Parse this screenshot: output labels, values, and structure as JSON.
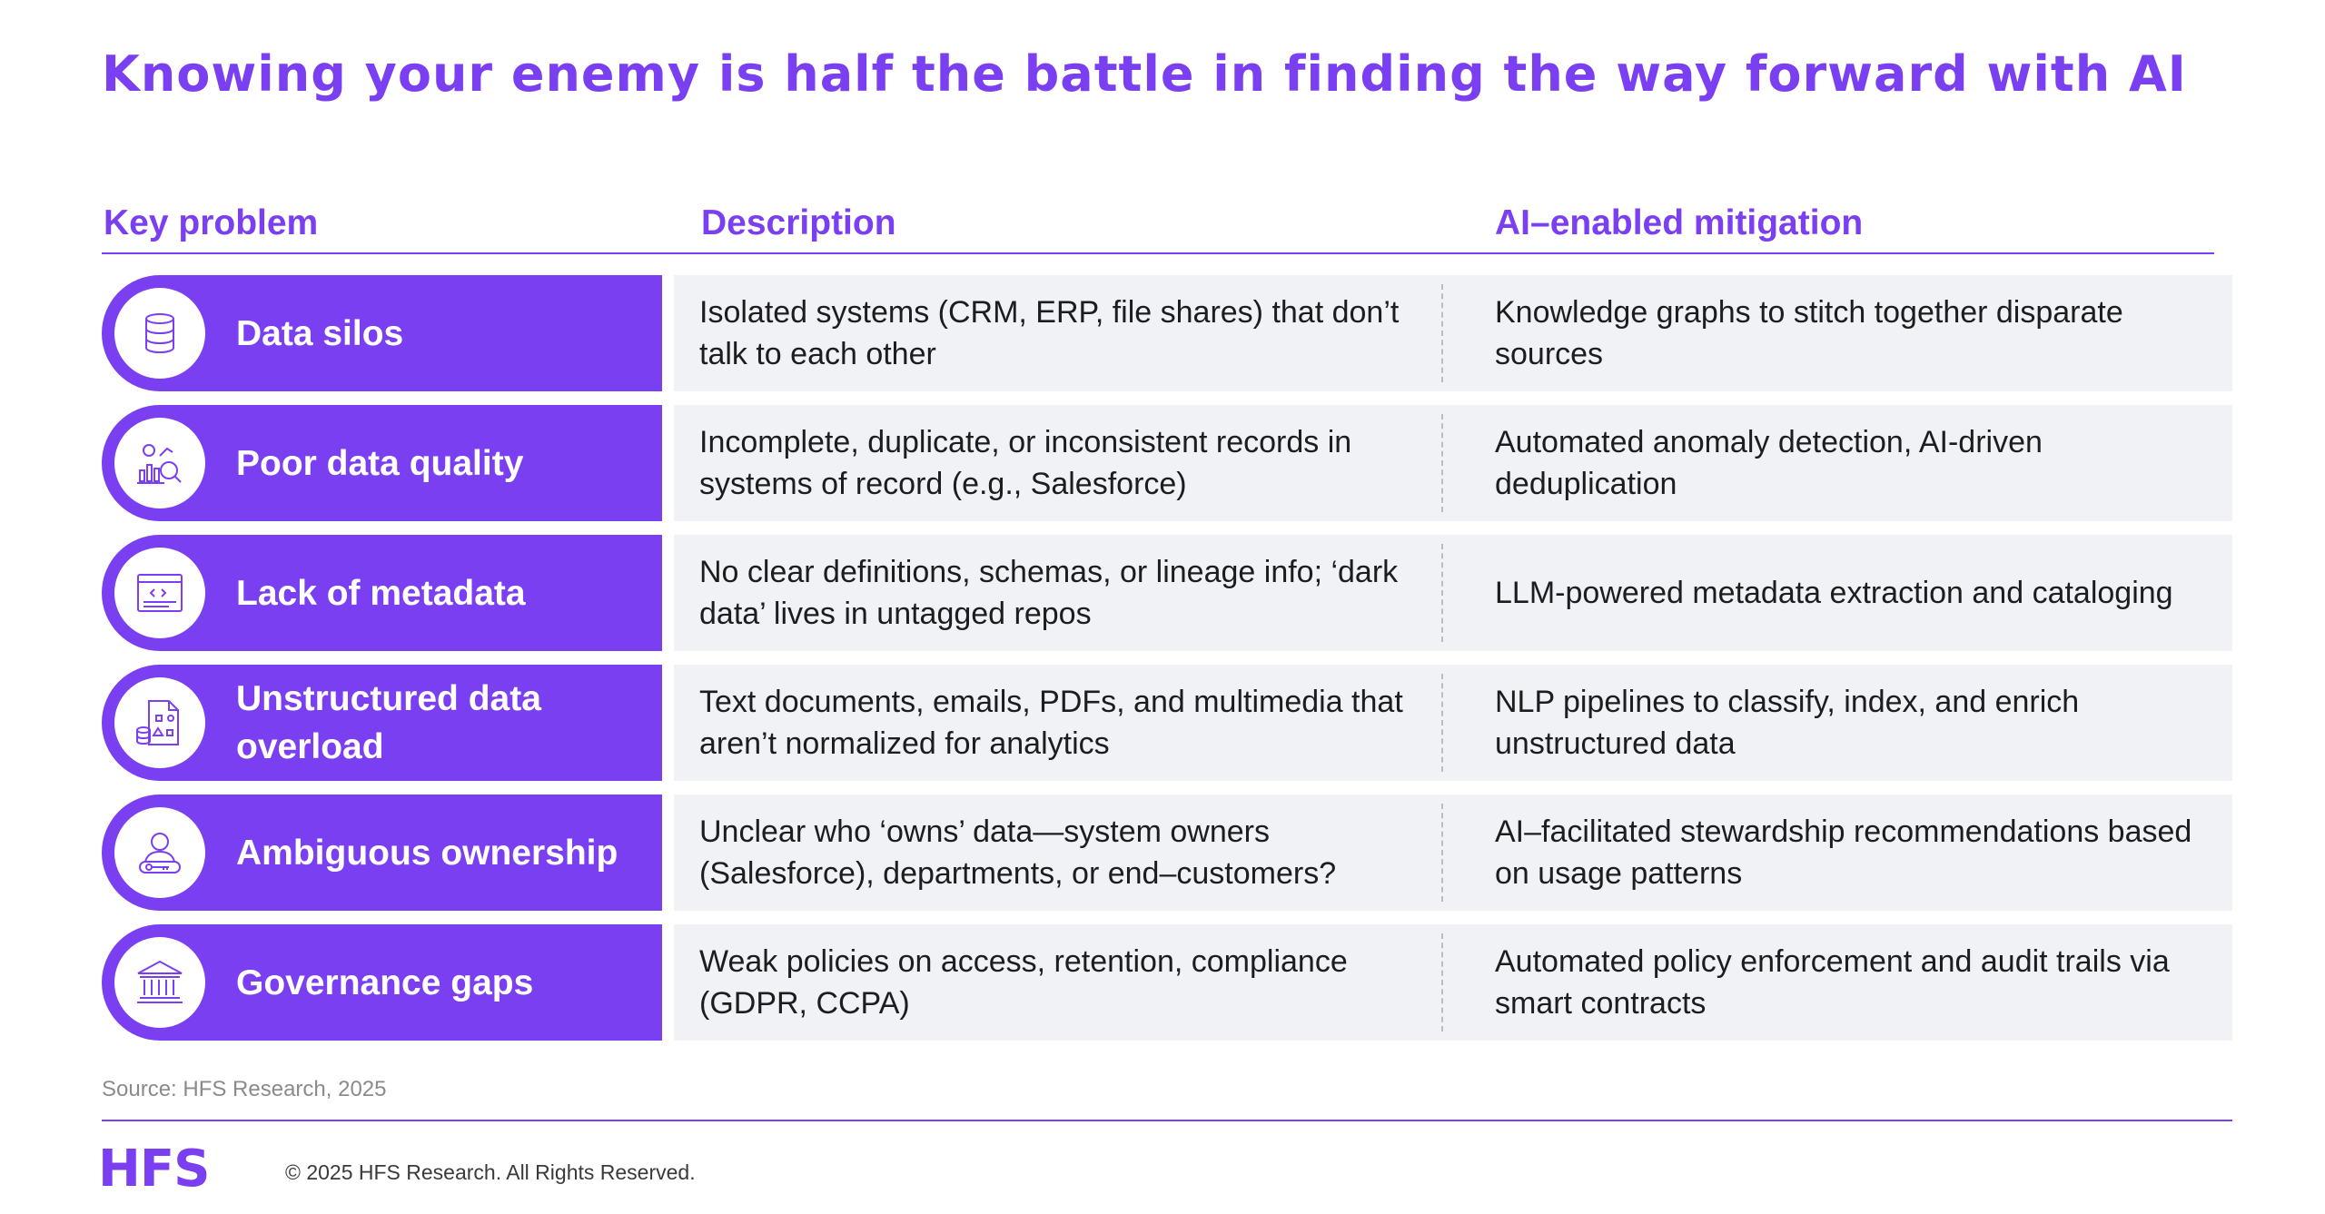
{
  "title": "Knowing your enemy is half the battle in finding the way forward with AI",
  "columns": {
    "problem": "Key problem",
    "description": "Description",
    "mitigation": "AI–enabled mitigation"
  },
  "rows": [
    {
      "problem": "Data silos",
      "icon": "database-icon",
      "description": "Isolated systems (CRM, ERP, file shares) that don’t talk to each other",
      "mitigation": "Knowledge graphs to stitch together disparate sources"
    },
    {
      "problem": "Poor data quality",
      "icon": "data-inspection-icon",
      "description": "Incomplete, duplicate, or inconsistent records in systems of record (e.g., Salesforce)",
      "mitigation": "Automated anomaly detection, AI-driven deduplication"
    },
    {
      "problem": "Lack of metadata",
      "icon": "code-window-icon",
      "description": "No clear definitions, schemas, or lineage info; ‘dark data’ lives in untagged repos",
      "mitigation": "LLM-powered metadata extraction and cataloging"
    },
    {
      "problem": "Unstructured data overload",
      "icon": "unstructured-document-icon",
      "description": "Text documents, emails, PDFs, and multimedia that aren’t normalized for analytics",
      "mitigation": "NLP pipelines to classify, index, and enrich unstructured data"
    },
    {
      "problem": "Ambiguous ownership",
      "icon": "user-key-icon",
      "description": "Unclear who ‘owns’ data—system owners (Salesforce), departments, or end–customers?",
      "mitigation": "AI–facilitated stewardship recommendations based on usage patterns"
    },
    {
      "problem": "Governance gaps",
      "icon": "institution-icon",
      "description": "Weak policies on access, retention, compliance (GDPR, CCPA)",
      "mitigation": "Automated policy enforcement and audit trails via smart contracts"
    }
  ],
  "source": "Source: HFS Research, 2025",
  "footer": {
    "logo": "HFS",
    "copyright": "© 2025 HFS Research. All Rights Reserved."
  },
  "colors": {
    "accent": "#7b3ff2",
    "row_bg": "#f0f2f5"
  }
}
